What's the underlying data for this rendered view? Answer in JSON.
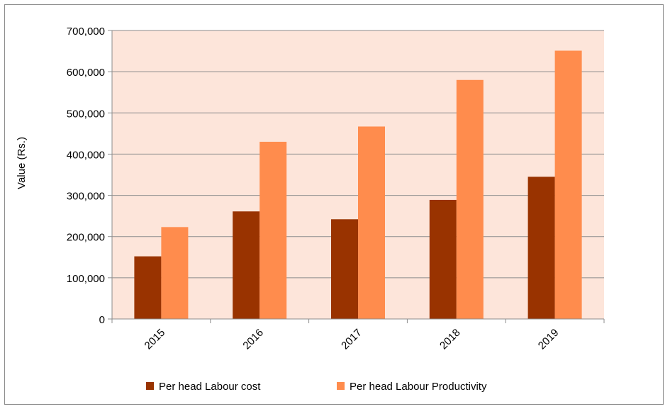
{
  "chart_data": {
    "type": "bar",
    "title": "",
    "xlabel": "",
    "ylabel": "Value (Rs.)",
    "categories": [
      "2015",
      "2016",
      "2017",
      "2018",
      "2019"
    ],
    "series": [
      {
        "name": "Per head Labour cost",
        "values": [
          152000,
          261000,
          242000,
          289000,
          345000
        ],
        "color": "#993300"
      },
      {
        "name": "Per head Labour Productivity",
        "values": [
          223000,
          430000,
          467000,
          580000,
          651000
        ],
        "color": "#ff8c4d"
      }
    ],
    "ylim": [
      0,
      700000
    ],
    "yticks": [
      "0",
      "100,000",
      "200,000",
      "300,000",
      "400,000",
      "500,000",
      "600,000",
      "700,000"
    ],
    "grid": true,
    "legend_position": "bottom",
    "plot_background": "#fde5da",
    "gridline_color": "#8c8c8c"
  }
}
